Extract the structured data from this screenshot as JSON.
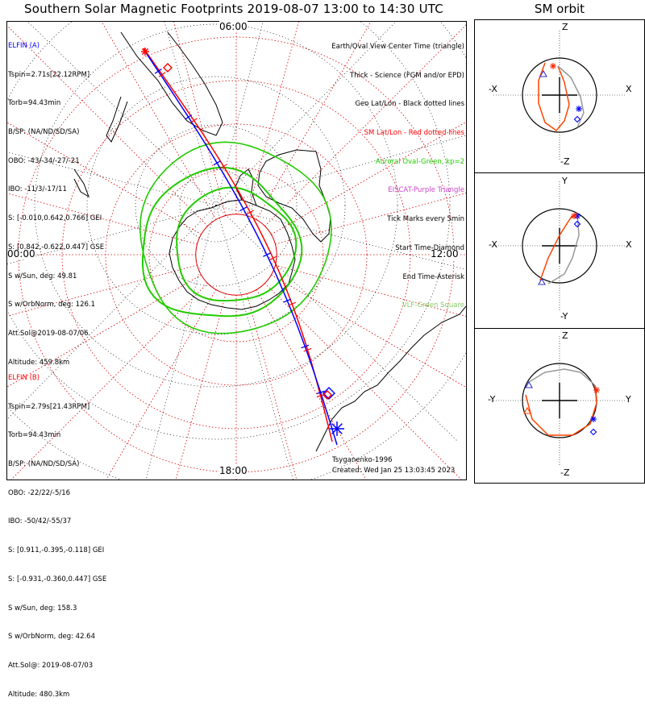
{
  "title": "Southern Solar Magnetic Footprints 2019-08-07 13:00 to 14:30 UTC",
  "sm_title": "SM orbit",
  "elfin_a": {
    "name": "ELFIN (A)",
    "lines": [
      "Tspin=2.71s[22.12RPM]",
      "Torb=94.43min",
      "B/SP: (NA/ND/SD/SA)",
      "OBO: -43/-34/-27/-21",
      "IBO: -11/3/-17/11",
      "S: [-0.010,0.642,0.766] GEI",
      "S: [0.842,-0.622,0.447] GSE",
      "S w/Sun, deg: 49.81",
      "S w/OrbNorm, deg: 126.1",
      "Att.Sol@2019-08-07/06",
      "Altitude: 459.8km"
    ],
    "color": "#0000ff"
  },
  "elfin_b": {
    "name": "ELFIN (B)",
    "lines": [
      "Tspin=2.79s[21.43RPM]",
      "Torb=94.43min",
      "B/SP: (NA/ND/SD/SA)",
      "OBO: -22/22/-5/16",
      "IBO: -50/42/-55/37",
      "S: [0.911,-0.395,-0.118] GEI",
      "S: [-0.931,-0.360,0.447] GSE",
      "S w/Sun, deg: 158.3",
      "S w/OrbNorm, deg: 42.64",
      "Att.Sol@: 2019-08-07/03",
      "Altitude: 480.3km"
    ],
    "color": "#ff0000"
  },
  "legend": [
    {
      "text": "Earth/Oval View Center Time (triangle)",
      "color": "#000000"
    },
    {
      "text": "Thick - Science (FGM and/or EPD)",
      "color": "#000000"
    },
    {
      "text": "Geo Lat/Lon - Black dotted lines",
      "color": "#000000"
    },
    {
      "text": "SM Lat/Lon - Red dotted lines",
      "color": "#ff0000"
    },
    {
      "text": "Auroral Oval-Green, kp=2",
      "color": "#22cc00"
    },
    {
      "text": "EISCAT-Purple Triangle",
      "color": "#cc44cc"
    },
    {
      "text": "Tick Marks every 5min",
      "color": "#000000"
    },
    {
      "text": "Start Time-Diamond",
      "color": "#000000"
    },
    {
      "text": "End Time-Asterisk",
      "color": "#000000"
    },
    {
      "text": "VLF-Green Square",
      "color": "#88cc66"
    }
  ],
  "hour_labels": {
    "top": "06:00",
    "left": "00:00",
    "right": "12:00",
    "bottom": "18:00"
  },
  "footer": {
    "author": "Tsyganenko-1996",
    "created": "Created: Wed Jan 25 13:03:45 2023"
  },
  "orbit_panels": [
    {
      "up": "Z",
      "down": "-Z",
      "left": "-X",
      "right": "X"
    },
    {
      "up": "Y",
      "down": "-Y",
      "left": "-X",
      "right": "X"
    },
    {
      "up": "Z",
      "down": "-Z",
      "left": "-Y",
      "right": "Y"
    }
  ],
  "chart_data": {
    "type": "scatter",
    "title": "Southern Solar Magnetic Footprints 2019-08-07 13:00 to 14:30 UTC",
    "projection": "SM polar, south pole",
    "sm_latitude_circles_deg": [
      -90,
      -80,
      -70,
      -60,
      -50,
      -40
    ],
    "sm_mlt_spokes_hours": 24,
    "mlt_axis_labels": [
      "06:00",
      "00:00",
      "12:00",
      "18:00"
    ],
    "series": [
      {
        "name": "ELFIN (A)",
        "color": "#0000ff",
        "start_marker": "diamond",
        "end_marker": "asterisk",
        "tick_interval_min": 5
      },
      {
        "name": "ELFIN (B)",
        "color": "#ff0000",
        "start_marker": "diamond",
        "end_marker": "asterisk",
        "tick_interval_min": 5
      }
    ],
    "auroral_oval": {
      "kp": 2,
      "color": "#22cc00"
    },
    "model": "Tsyganenko-1996",
    "grid": true
  }
}
